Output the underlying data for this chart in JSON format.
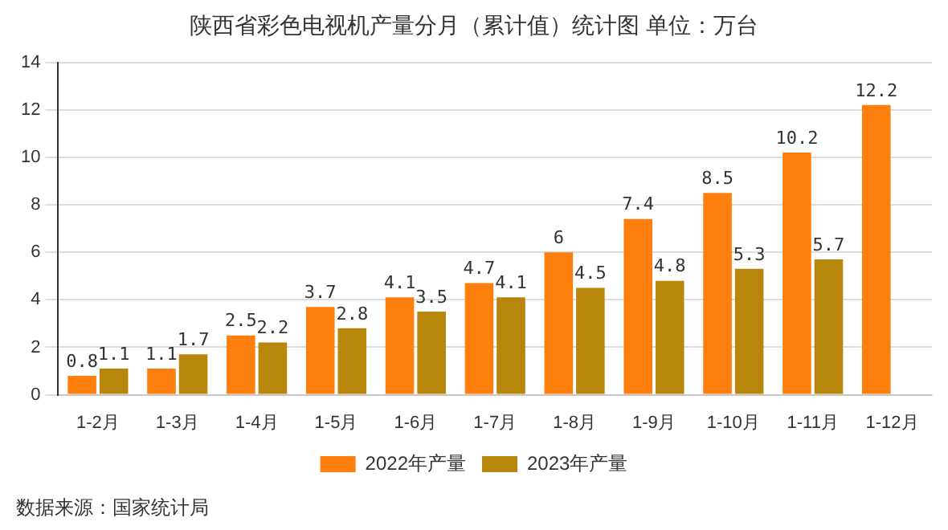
{
  "chart_data": {
    "type": "bar",
    "title": "陕西省彩色电视机产量分月（累计值）统计图 单位：万台",
    "categories": [
      "1-2月",
      "1-3月",
      "1-4月",
      "1-5月",
      "1-6月",
      "1-7月",
      "1-8月",
      "1-9月",
      "1-10月",
      "1-11月",
      "1-12月"
    ],
    "series": [
      {
        "name": "2022年产量",
        "color": "#ff7f0e",
        "values": [
          0.8,
          1.1,
          2.5,
          3.7,
          4.1,
          4.7,
          6,
          7.4,
          8.5,
          10.2,
          12.2
        ]
      },
      {
        "name": "2023年产量",
        "color": "#b8860b",
        "values": [
          1.1,
          1.7,
          2.2,
          2.8,
          3.5,
          4.1,
          4.5,
          4.8,
          5.3,
          5.7,
          null
        ]
      }
    ],
    "ylim": [
      0,
      14
    ],
    "yticks": [
      0,
      2,
      4,
      6,
      8,
      10,
      12,
      14
    ],
    "grid": "y",
    "legend": "bottom",
    "data_labels": true,
    "annotations": [
      "数据来源：国家统计局"
    ]
  }
}
